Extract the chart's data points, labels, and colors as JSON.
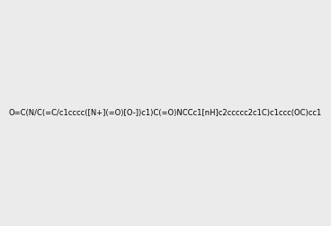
{
  "smiles": "O=C(N/C(=C/c1cccc([N+](=O)[O-])c1)C(=O)NCCc1[nH]c2ccccc2c1C)c1ccc(OC)cc1",
  "image_size": 300,
  "background_color": "#ebebeb",
  "bond_color": "#1a1a1a",
  "atom_colors": {
    "N": "#0000ff",
    "O": "#ff0000",
    "H_on_N": "#008080"
  },
  "title": ""
}
